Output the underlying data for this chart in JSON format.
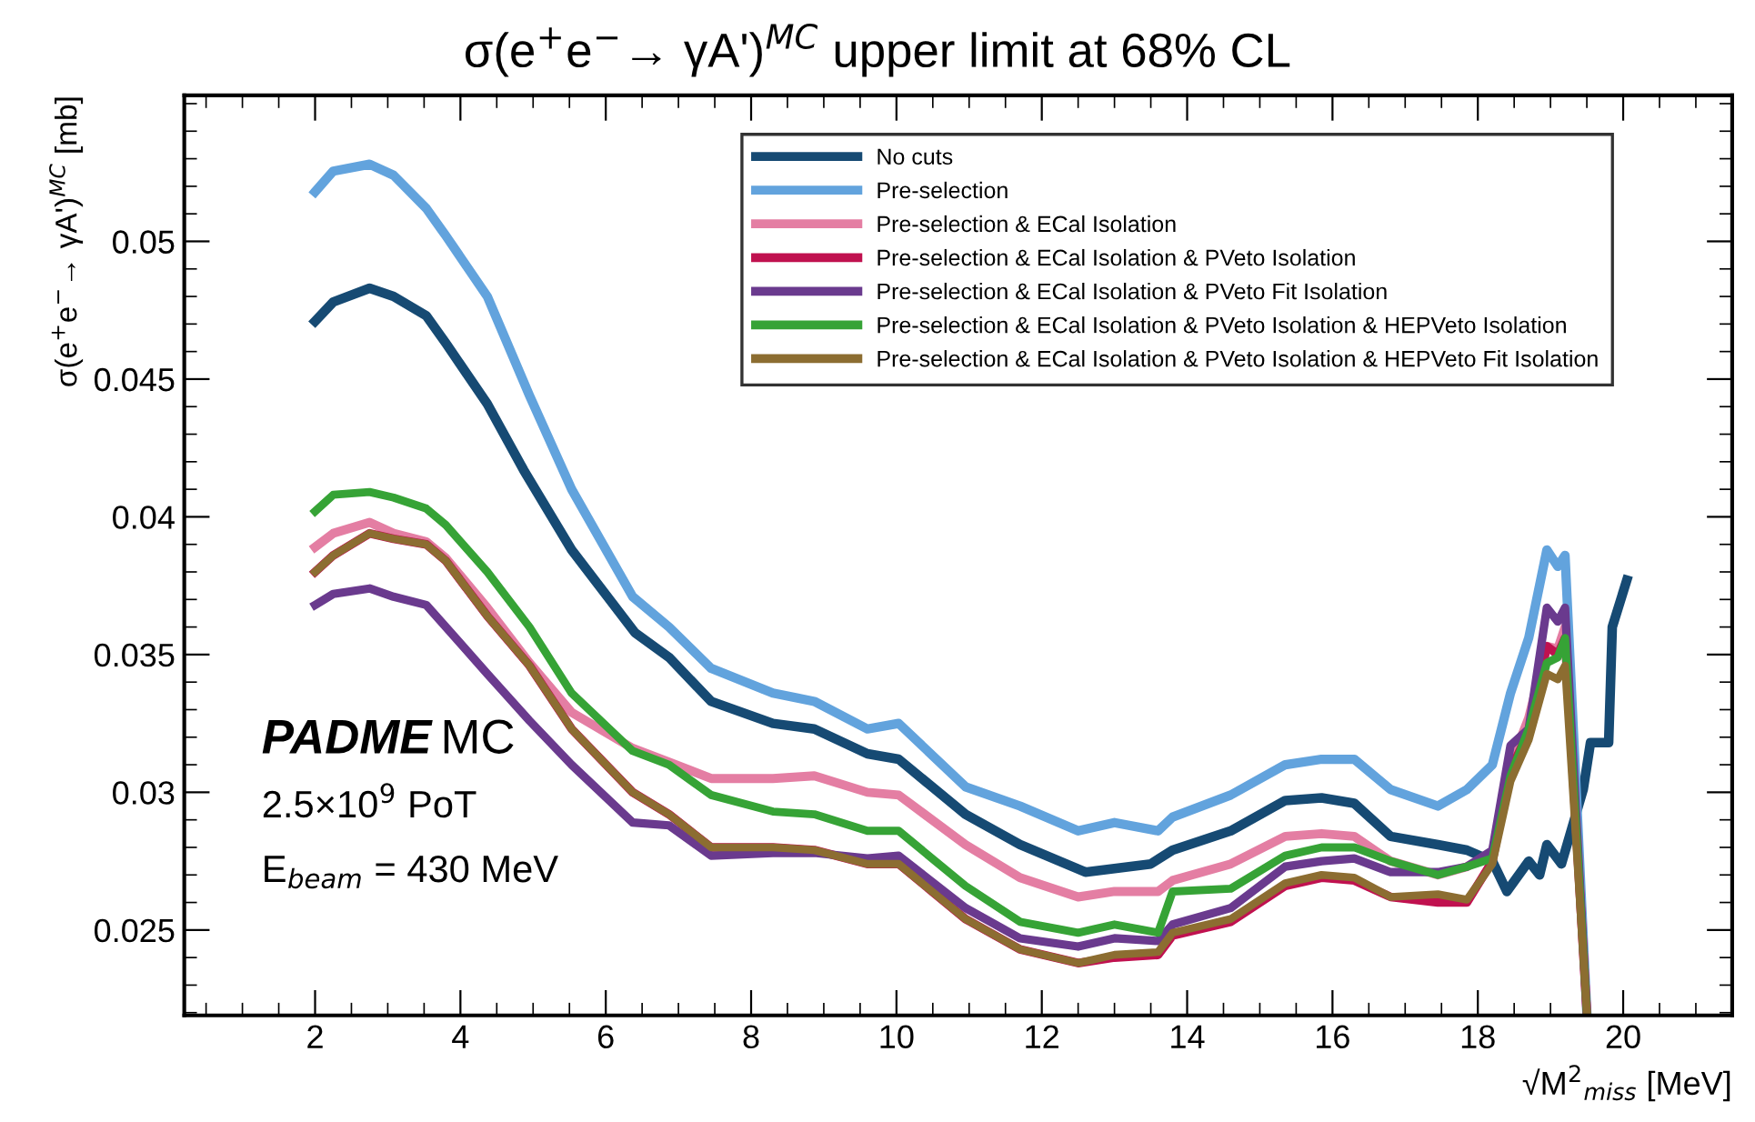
{
  "chart_data": {
    "type": "line",
    "title": "σ(e$^{+}$e$^{−}$→ γA')$^{MC}$ upper limit at 68% CL",
    "ylabel": "σ(e$^{+}$e$^{−}$→ γA')$^{MC}$ [mb]",
    "xlabel": "√M$^{2}$$_{miss}$ [MeV]",
    "annotations": [
      "PADME",
      "MC",
      "2.5×10$^{9}$ PoT",
      "E$_{beam}$ = 430 MeV"
    ],
    "xlim": [
      0.2,
      21.5
    ],
    "ylim": [
      0.0219,
      0.0553
    ],
    "xticks": [
      2,
      4,
      6,
      8,
      10,
      12,
      14,
      16,
      18,
      20
    ],
    "yticks": [
      0.025,
      0.03,
      0.035,
      0.04,
      0.045,
      0.05
    ],
    "grid": false,
    "legend": "top right",
    "line_style": "solid",
    "marker": "none",
    "x": [
      2,
      2.25,
      2.75,
      3.08,
      3.53,
      3.8,
      4.37,
      4.95,
      5.53,
      6.37,
      6.87,
      7.45,
      8.3,
      8.87,
      9.6,
      10.03,
      10.95,
      11.7,
      12.5,
      13.0,
      13.6,
      13.8,
      14.6,
      15.35,
      15.85,
      16.3,
      16.8,
      17.45,
      17.85,
      18.2,
      18.45,
      18.7,
      18.95,
      19.1,
      19.2,
      19.5
    ],
    "series": [
      {
        "name": "No cuts",
        "color": "#164a73",
        "x": [
          2,
          2.25,
          2.75,
          3.08,
          3.53,
          3.8,
          4.37,
          4.87,
          5.53,
          6.4,
          6.87,
          7.45,
          8.3,
          8.87,
          9.6,
          10.03,
          10.95,
          11.7,
          12.6,
          13.5,
          13.8,
          14.6,
          15.35,
          15.85,
          16.3,
          16.8,
          17.45,
          17.85,
          18.2,
          18.4,
          18.7,
          18.85,
          18.95,
          19.15,
          19.45,
          19.55,
          19.8,
          19.85,
          20.05
        ],
        "values": [
          0.0471,
          0.0478,
          0.0483,
          0.048,
          0.0473,
          0.0463,
          0.0441,
          0.0417,
          0.0388,
          0.0358,
          0.0349,
          0.0333,
          0.0325,
          0.0323,
          0.0314,
          0.0312,
          0.0292,
          0.0281,
          0.0271,
          0.0274,
          0.0279,
          0.0286,
          0.0297,
          0.0298,
          0.0296,
          0.0284,
          0.0281,
          0.0279,
          0.0275,
          0.0264,
          0.0275,
          0.027,
          0.0281,
          0.0274,
          0.0301,
          0.0318,
          0.0318,
          0.036,
          0.0377
        ]
      },
      {
        "name": "Pre-selection",
        "color": "#62a3dd",
        "values": [
          0.0518,
          0.05255,
          0.0528,
          0.0524,
          0.0512,
          0.0502,
          0.048,
          0.0444,
          0.041,
          0.0371,
          0.036,
          0.0345,
          0.0336,
          0.0333,
          0.0323,
          0.0325,
          0.0302,
          0.0295,
          0.0286,
          0.0289,
          0.0286,
          0.0291,
          0.0299,
          0.031,
          0.0312,
          0.0312,
          0.0301,
          0.0295,
          0.0301,
          0.031,
          0.0336,
          0.0356,
          0.0388,
          0.0382,
          0.0386,
          0.022
        ]
      },
      {
        "name": "Pre-selection & ECal Isolation",
        "color": "#e47ea3",
        "values": [
          0.0389,
          0.0394,
          0.0398,
          0.0394,
          0.0391,
          0.0385,
          0.0367,
          0.0347,
          0.0329,
          0.0316,
          0.0311,
          0.0305,
          0.0305,
          0.0306,
          0.03,
          0.0299,
          0.0281,
          0.0269,
          0.0262,
          0.0264,
          0.0264,
          0.0268,
          0.0274,
          0.0284,
          0.0285,
          0.0284,
          0.0275,
          0.027,
          0.0273,
          0.0278,
          0.031,
          0.0327,
          0.0353,
          0.0352,
          0.036,
          0.022
        ]
      },
      {
        "name": "Pre-selection & ECal Isolation & PVeto Isolation",
        "color": "#c0114f",
        "values": [
          0.038,
          0.0386,
          0.0394,
          0.0392,
          0.039,
          0.0384,
          0.0364,
          0.0346,
          0.0323,
          0.03,
          0.0292,
          0.028,
          0.028,
          0.0279,
          0.0274,
          0.0274,
          0.0254,
          0.0243,
          0.0238,
          0.024,
          0.0241,
          0.0248,
          0.0253,
          0.0266,
          0.0269,
          0.0268,
          0.0262,
          0.026,
          0.026,
          0.0275,
          0.0308,
          0.0322,
          0.0353,
          0.035,
          0.0356,
          0.022
        ]
      },
      {
        "name": "Pre-selection & ECal Isolation & PVeto Fit Isolation",
        "color": "#6a3a8e",
        "values": [
          0.0368,
          0.0372,
          0.0374,
          0.0371,
          0.0368,
          0.036,
          0.0343,
          0.0326,
          0.031,
          0.0289,
          0.0288,
          0.0277,
          0.0278,
          0.0278,
          0.0276,
          0.0277,
          0.0258,
          0.0247,
          0.0244,
          0.0247,
          0.0246,
          0.0252,
          0.0258,
          0.0273,
          0.0275,
          0.0276,
          0.0271,
          0.0271,
          0.0273,
          0.0279,
          0.0317,
          0.0323,
          0.0367,
          0.0362,
          0.0367,
          0.022
        ]
      },
      {
        "name": "Pre-selection & ECal Isolation & PVeto Isolation & HEPVeto Isolation",
        "color": "#36a336",
        "values": [
          0.0402,
          0.0408,
          0.0409,
          0.0407,
          0.0403,
          0.0397,
          0.038,
          0.036,
          0.0336,
          0.0315,
          0.031,
          0.0299,
          0.0293,
          0.0292,
          0.0286,
          0.0286,
          0.0266,
          0.0253,
          0.0249,
          0.0252,
          0.0249,
          0.0264,
          0.0265,
          0.0277,
          0.028,
          0.028,
          0.0275,
          0.027,
          0.0273,
          0.0276,
          0.0306,
          0.0323,
          0.0347,
          0.0349,
          0.0356,
          0.022
        ]
      },
      {
        "name": "Pre-selection & ECal Isolation & PVeto Isolation & HEPVeto Fit Isolation",
        "color": "#8c6d31",
        "values": [
          0.038,
          0.0386,
          0.0394,
          0.0392,
          0.039,
          0.0384,
          0.0364,
          0.0346,
          0.0323,
          0.03,
          0.0292,
          0.028,
          0.028,
          0.0279,
          0.0274,
          0.0274,
          0.0254,
          0.0243,
          0.0238,
          0.0241,
          0.0242,
          0.0249,
          0.0254,
          0.0267,
          0.027,
          0.0269,
          0.0262,
          0.0263,
          0.0261,
          0.0274,
          0.0304,
          0.0319,
          0.0343,
          0.0341,
          0.0346,
          0.022
        ]
      }
    ]
  }
}
